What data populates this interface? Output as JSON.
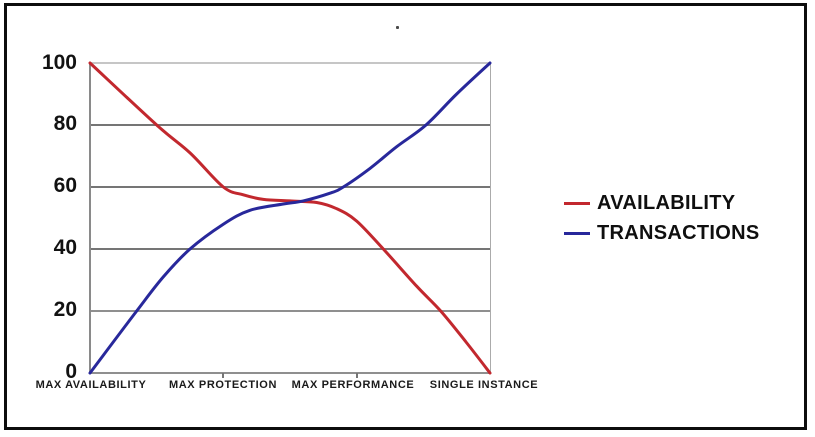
{
  "colors": {
    "availability_line": "#c2282e",
    "transactions_line": "#28289b",
    "grid_top": "#c6c6c6",
    "grid_dark": "#757575",
    "grid_mid": "#8f8f8f",
    "axis": "#8a8a8a",
    "plot_right_border": "#ababab",
    "frame_border": "#0d0d0d",
    "text": "#111111"
  },
  "chart_data": {
    "type": "line",
    "title": "",
    "xlabel": "",
    "ylabel": "",
    "ylim": [
      0,
      100
    ],
    "grid": "horizontal",
    "legend_position": "right",
    "y_ticks": [
      "100",
      "80",
      "60",
      "40",
      "20",
      "0"
    ],
    "x_categories": [
      "MAX AVAILABILITY",
      "MAX PROTECTION",
      "MAX PERFORMANCE",
      "SINGLE INSTANCE"
    ],
    "series": [
      {
        "name": "AVAILABILITY",
        "color": "#c2282e",
        "points_x_category_units": [
          0,
          0.5,
          0.75,
          1.0,
          1.15,
          1.3,
          1.5,
          1.7,
          1.85,
          2.0,
          2.2,
          2.45,
          2.63,
          2.82,
          3.0
        ],
        "points_y_values": [
          100,
          80,
          71,
          60,
          57.5,
          56,
          55.5,
          55,
          53,
          49,
          40,
          28,
          20,
          10,
          0
        ]
      },
      {
        "name": "TRANSACTIONS",
        "color": "#28289b",
        "points_x_category_units": [
          0,
          0.35,
          0.55,
          0.75,
          1.0,
          1.2,
          1.45,
          1.6,
          1.8,
          1.9,
          2.1,
          2.3,
          2.52,
          2.75,
          3.0
        ],
        "points_y_values": [
          0,
          20,
          31,
          40,
          48,
          52.5,
          54.5,
          55.5,
          58,
          60,
          66,
          73,
          80,
          90,
          100
        ]
      }
    ]
  },
  "legend": {
    "items": [
      {
        "label": "AVAILABILITY"
      },
      {
        "label": "TRANSACTIONS"
      }
    ]
  }
}
